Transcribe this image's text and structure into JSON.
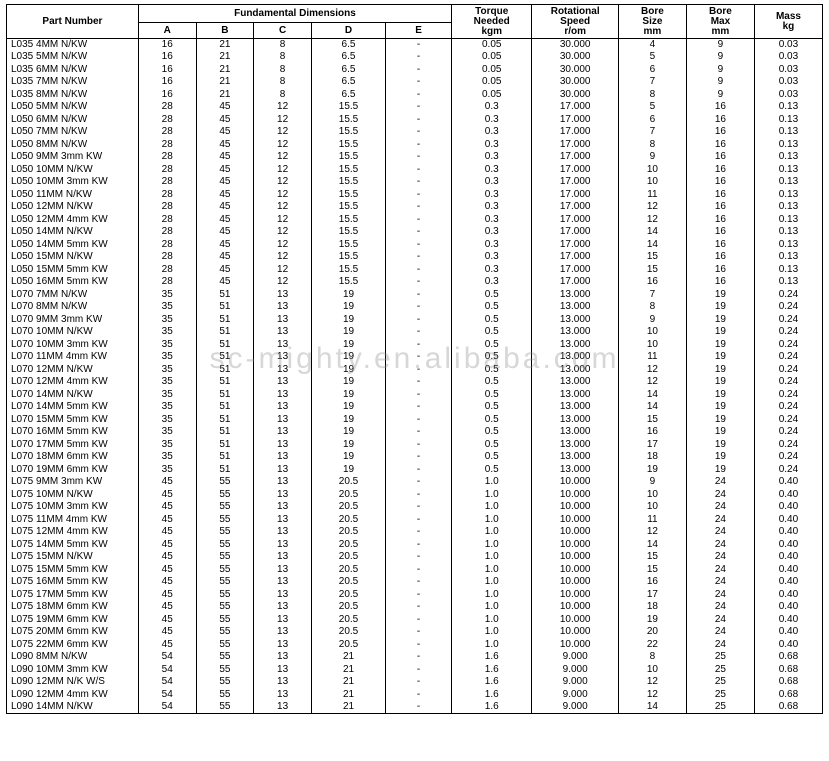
{
  "watermark": "sc-mighty.en.alibaba.com",
  "table": {
    "header": {
      "part_number": "Part Number",
      "fundamental": "Fundamental Dimensions",
      "cols_fund": [
        "A",
        "B",
        "C",
        "D",
        "E"
      ],
      "torque": "Torque\nNeeded\nkgm",
      "rot": "Rotational\nSpeed\nr/om",
      "bore_size": "Bore\nSize\nmm",
      "bore_max": "Bore\nMax\nmm",
      "mass": "Mass\nkg"
    },
    "rows": [
      {
        "pn": "L035 4MM N/KW",
        "a": 16,
        "b": 21,
        "c": 8,
        "d": "6.5",
        "e": "-",
        "tq": "0.05",
        "rs": "30.000",
        "bs": 4,
        "bm": 9,
        "mk": "0.03"
      },
      {
        "pn": "L035 5MM N/KW",
        "a": 16,
        "b": 21,
        "c": 8,
        "d": "6.5",
        "e": "-",
        "tq": "0.05",
        "rs": "30.000",
        "bs": 5,
        "bm": 9,
        "mk": "0.03"
      },
      {
        "pn": "L035 6MM N/KW",
        "a": 16,
        "b": 21,
        "c": 8,
        "d": "6.5",
        "e": "-",
        "tq": "0.05",
        "rs": "30.000",
        "bs": 6,
        "bm": 9,
        "mk": "0.03"
      },
      {
        "pn": "L035 7MM N/KW",
        "a": 16,
        "b": 21,
        "c": 8,
        "d": "6.5",
        "e": "-",
        "tq": "0.05",
        "rs": "30.000",
        "bs": 7,
        "bm": 9,
        "mk": "0.03"
      },
      {
        "pn": "L035 8MM N/KW",
        "a": 16,
        "b": 21,
        "c": 8,
        "d": "6.5",
        "e": "-",
        "tq": "0.05",
        "rs": "30.000",
        "bs": 8,
        "bm": 9,
        "mk": "0.03"
      },
      {
        "pn": "L050 5MM N/KW",
        "a": 28,
        "b": 45,
        "c": 12,
        "d": "15.5",
        "e": "-",
        "tq": "0.3",
        "rs": "17.000",
        "bs": 5,
        "bm": 16,
        "mk": "0.13"
      },
      {
        "pn": "L050 6MM N/KW",
        "a": 28,
        "b": 45,
        "c": 12,
        "d": "15.5",
        "e": "-",
        "tq": "0.3",
        "rs": "17.000",
        "bs": 6,
        "bm": 16,
        "mk": "0.13"
      },
      {
        "pn": "L050 7MM N/KW",
        "a": 28,
        "b": 45,
        "c": 12,
        "d": "15.5",
        "e": "-",
        "tq": "0.3",
        "rs": "17.000",
        "bs": 7,
        "bm": 16,
        "mk": "0.13"
      },
      {
        "pn": "L050 8MM N/KW",
        "a": 28,
        "b": 45,
        "c": 12,
        "d": "15.5",
        "e": "-",
        "tq": "0.3",
        "rs": "17.000",
        "bs": 8,
        "bm": 16,
        "mk": "0.13"
      },
      {
        "pn": "L050 9MM 3mm KW",
        "a": 28,
        "b": 45,
        "c": 12,
        "d": "15.5",
        "e": "-",
        "tq": "0.3",
        "rs": "17.000",
        "bs": 9,
        "bm": 16,
        "mk": "0.13"
      },
      {
        "pn": "L050 10MM N/KW",
        "a": 28,
        "b": 45,
        "c": 12,
        "d": "15.5",
        "e": "-",
        "tq": "0.3",
        "rs": "17.000",
        "bs": 10,
        "bm": 16,
        "mk": "0.13"
      },
      {
        "pn": "L050 10MM 3mm KW",
        "a": 28,
        "b": 45,
        "c": 12,
        "d": "15.5",
        "e": "-",
        "tq": "0.3",
        "rs": "17.000",
        "bs": 10,
        "bm": 16,
        "mk": "0.13"
      },
      {
        "pn": "L050 11MM N/KW",
        "a": 28,
        "b": 45,
        "c": 12,
        "d": "15.5",
        "e": "-",
        "tq": "0.3",
        "rs": "17.000",
        "bs": 11,
        "bm": 16,
        "mk": "0.13"
      },
      {
        "pn": "L050 12MM N/KW",
        "a": 28,
        "b": 45,
        "c": 12,
        "d": "15.5",
        "e": "-",
        "tq": "0.3",
        "rs": "17.000",
        "bs": 12,
        "bm": 16,
        "mk": "0.13"
      },
      {
        "pn": "L050 12MM 4mm KW",
        "a": 28,
        "b": 45,
        "c": 12,
        "d": "15.5",
        "e": "-",
        "tq": "0.3",
        "rs": "17.000",
        "bs": 12,
        "bm": 16,
        "mk": "0.13"
      },
      {
        "pn": "L050 14MM N/KW",
        "a": 28,
        "b": 45,
        "c": 12,
        "d": "15.5",
        "e": "-",
        "tq": "0.3",
        "rs": "17.000",
        "bs": 14,
        "bm": 16,
        "mk": "0.13"
      },
      {
        "pn": "L050 14MM 5mm KW",
        "a": 28,
        "b": 45,
        "c": 12,
        "d": "15.5",
        "e": "-",
        "tq": "0.3",
        "rs": "17.000",
        "bs": 14,
        "bm": 16,
        "mk": "0.13"
      },
      {
        "pn": "L050 15MM N/KW",
        "a": 28,
        "b": 45,
        "c": 12,
        "d": "15.5",
        "e": "-",
        "tq": "0.3",
        "rs": "17.000",
        "bs": 15,
        "bm": 16,
        "mk": "0.13"
      },
      {
        "pn": "L050 15MM 5mm KW",
        "a": 28,
        "b": 45,
        "c": 12,
        "d": "15.5",
        "e": "-",
        "tq": "0.3",
        "rs": "17.000",
        "bs": 15,
        "bm": 16,
        "mk": "0.13"
      },
      {
        "pn": "L050 16MM 5mm KW",
        "a": 28,
        "b": 45,
        "c": 12,
        "d": "15.5",
        "e": "-",
        "tq": "0.3",
        "rs": "17.000",
        "bs": 16,
        "bm": 16,
        "mk": "0.13"
      },
      {
        "pn": "L070 7MM N/KW",
        "a": 35,
        "b": 51,
        "c": 13,
        "d": "19",
        "e": "-",
        "tq": "0.5",
        "rs": "13.000",
        "bs": 7,
        "bm": 19,
        "mk": "0.24"
      },
      {
        "pn": "L070 8MM N/KW",
        "a": 35,
        "b": 51,
        "c": 13,
        "d": "19",
        "e": "-",
        "tq": "0.5",
        "rs": "13.000",
        "bs": 8,
        "bm": 19,
        "mk": "0.24"
      },
      {
        "pn": "L070 9MM 3mm KW",
        "a": 35,
        "b": 51,
        "c": 13,
        "d": "19",
        "e": "-",
        "tq": "0.5",
        "rs": "13.000",
        "bs": 9,
        "bm": 19,
        "mk": "0.24"
      },
      {
        "pn": "L070 10MM N/KW",
        "a": 35,
        "b": 51,
        "c": 13,
        "d": "19",
        "e": "-",
        "tq": "0.5",
        "rs": "13.000",
        "bs": 10,
        "bm": 19,
        "mk": "0.24"
      },
      {
        "pn": "L070 10MM 3mm KW",
        "a": 35,
        "b": 51,
        "c": 13,
        "d": "19",
        "e": "-",
        "tq": "0.5",
        "rs": "13.000",
        "bs": 10,
        "bm": 19,
        "mk": "0.24"
      },
      {
        "pn": "L070 11MM 4mm KW",
        "a": 35,
        "b": 51,
        "c": 13,
        "d": "19",
        "e": "-",
        "tq": "0.5",
        "rs": "13.000",
        "bs": 11,
        "bm": 19,
        "mk": "0.24"
      },
      {
        "pn": "L070 12MM N/KW",
        "a": 35,
        "b": 51,
        "c": 13,
        "d": "19",
        "e": "-",
        "tq": "0.5",
        "rs": "13.000",
        "bs": 12,
        "bm": 19,
        "mk": "0.24"
      },
      {
        "pn": "L070 12MM 4mm KW",
        "a": 35,
        "b": 51,
        "c": 13,
        "d": "19",
        "e": "-",
        "tq": "0.5",
        "rs": "13.000",
        "bs": 12,
        "bm": 19,
        "mk": "0.24"
      },
      {
        "pn": "L070 14MM N/KW",
        "a": 35,
        "b": 51,
        "c": 13,
        "d": "19",
        "e": "-",
        "tq": "0.5",
        "rs": "13.000",
        "bs": 14,
        "bm": 19,
        "mk": "0.24"
      },
      {
        "pn": "L070 14MM 5mm KW",
        "a": 35,
        "b": 51,
        "c": 13,
        "d": "19",
        "e": "-",
        "tq": "0.5",
        "rs": "13.000",
        "bs": 14,
        "bm": 19,
        "mk": "0.24"
      },
      {
        "pn": "L070 15MM 5mm KW",
        "a": 35,
        "b": 51,
        "c": 13,
        "d": "19",
        "e": "-",
        "tq": "0.5",
        "rs": "13.000",
        "bs": 15,
        "bm": 19,
        "mk": "0.24"
      },
      {
        "pn": "L070 16MM 5mm KW",
        "a": 35,
        "b": 51,
        "c": 13,
        "d": "19",
        "e": "-",
        "tq": "0.5",
        "rs": "13.000",
        "bs": 16,
        "bm": 19,
        "mk": "0.24"
      },
      {
        "pn": "L070 17MM 5mm KW",
        "a": 35,
        "b": 51,
        "c": 13,
        "d": "19",
        "e": "-",
        "tq": "0.5",
        "rs": "13.000",
        "bs": 17,
        "bm": 19,
        "mk": "0.24"
      },
      {
        "pn": "L070 18MM 6mm KW",
        "a": 35,
        "b": 51,
        "c": 13,
        "d": "19",
        "e": "-",
        "tq": "0.5",
        "rs": "13.000",
        "bs": 18,
        "bm": 19,
        "mk": "0.24"
      },
      {
        "pn": "L070 19MM 6mm KW",
        "a": 35,
        "b": 51,
        "c": 13,
        "d": "19",
        "e": "-",
        "tq": "0.5",
        "rs": "13.000",
        "bs": 19,
        "bm": 19,
        "mk": "0.24"
      },
      {
        "pn": "L075 9MM 3mm KW",
        "a": 45,
        "b": 55,
        "c": 13,
        "d": "20.5",
        "e": "-",
        "tq": "1.0",
        "rs": "10.000",
        "bs": 9,
        "bm": 24,
        "mk": "0.40"
      },
      {
        "pn": "L075 10MM N/KW",
        "a": 45,
        "b": 55,
        "c": 13,
        "d": "20.5",
        "e": "-",
        "tq": "1.0",
        "rs": "10.000",
        "bs": 10,
        "bm": 24,
        "mk": "0.40"
      },
      {
        "pn": "L075 10MM 3mm KW",
        "a": 45,
        "b": 55,
        "c": 13,
        "d": "20.5",
        "e": "-",
        "tq": "1.0",
        "rs": "10.000",
        "bs": 10,
        "bm": 24,
        "mk": "0.40"
      },
      {
        "pn": "L075 11MM 4mm KW",
        "a": 45,
        "b": 55,
        "c": 13,
        "d": "20.5",
        "e": "-",
        "tq": "1.0",
        "rs": "10.000",
        "bs": 11,
        "bm": 24,
        "mk": "0.40"
      },
      {
        "pn": "L075 12MM 4mm KW",
        "a": 45,
        "b": 55,
        "c": 13,
        "d": "20.5",
        "e": "-",
        "tq": "1.0",
        "rs": "10.000",
        "bs": 12,
        "bm": 24,
        "mk": "0.40"
      },
      {
        "pn": "L075 14MM 5mm KW",
        "a": 45,
        "b": 55,
        "c": 13,
        "d": "20.5",
        "e": "-",
        "tq": "1.0",
        "rs": "10.000",
        "bs": 14,
        "bm": 24,
        "mk": "0.40"
      },
      {
        "pn": "L075 15MM N/KW",
        "a": 45,
        "b": 55,
        "c": 13,
        "d": "20.5",
        "e": "-",
        "tq": "1.0",
        "rs": "10.000",
        "bs": 15,
        "bm": 24,
        "mk": "0.40"
      },
      {
        "pn": "L075 15MM 5mm KW",
        "a": 45,
        "b": 55,
        "c": 13,
        "d": "20.5",
        "e": "-",
        "tq": "1.0",
        "rs": "10.000",
        "bs": 15,
        "bm": 24,
        "mk": "0.40"
      },
      {
        "pn": "L075 16MM 5mm KW",
        "a": 45,
        "b": 55,
        "c": 13,
        "d": "20.5",
        "e": "-",
        "tq": "1.0",
        "rs": "10.000",
        "bs": 16,
        "bm": 24,
        "mk": "0.40"
      },
      {
        "pn": "L075 17MM 5mm KW",
        "a": 45,
        "b": 55,
        "c": 13,
        "d": "20.5",
        "e": "-",
        "tq": "1.0",
        "rs": "10.000",
        "bs": 17,
        "bm": 24,
        "mk": "0.40"
      },
      {
        "pn": "L075 18MM 6mm KW",
        "a": 45,
        "b": 55,
        "c": 13,
        "d": "20.5",
        "e": "-",
        "tq": "1.0",
        "rs": "10.000",
        "bs": 18,
        "bm": 24,
        "mk": "0.40"
      },
      {
        "pn": "L075 19MM 6mm KW",
        "a": 45,
        "b": 55,
        "c": 13,
        "d": "20.5",
        "e": "-",
        "tq": "1.0",
        "rs": "10.000",
        "bs": 19,
        "bm": 24,
        "mk": "0.40"
      },
      {
        "pn": "L075 20MM 6mm KW",
        "a": 45,
        "b": 55,
        "c": 13,
        "d": "20.5",
        "e": "-",
        "tq": "1.0",
        "rs": "10.000",
        "bs": 20,
        "bm": 24,
        "mk": "0.40"
      },
      {
        "pn": "L075 22MM 6mm KW",
        "a": 45,
        "b": 55,
        "c": 13,
        "d": "20.5",
        "e": "-",
        "tq": "1.0",
        "rs": "10.000",
        "bs": 22,
        "bm": 24,
        "mk": "0.40"
      },
      {
        "pn": "L090 8MM N/KW",
        "a": 54,
        "b": 55,
        "c": 13,
        "d": "21",
        "e": "-",
        "tq": "1.6",
        "rs": "9.000",
        "bs": 8,
        "bm": 25,
        "mk": "0.68"
      },
      {
        "pn": "L090 10MM 3mm KW",
        "a": 54,
        "b": 55,
        "c": 13,
        "d": "21",
        "e": "-",
        "tq": "1.6",
        "rs": "9.000",
        "bs": 10,
        "bm": 25,
        "mk": "0.68"
      },
      {
        "pn": "L090 12MM N/K W/S",
        "a": 54,
        "b": 55,
        "c": 13,
        "d": "21",
        "e": "-",
        "tq": "1.6",
        "rs": "9.000",
        "bs": 12,
        "bm": 25,
        "mk": "0.68"
      },
      {
        "pn": "L090 12MM 4mm KW",
        "a": 54,
        "b": 55,
        "c": 13,
        "d": "21",
        "e": "-",
        "tq": "1.6",
        "rs": "9.000",
        "bs": 12,
        "bm": 25,
        "mk": "0.68"
      },
      {
        "pn": "L090 14MM N/KW",
        "a": 54,
        "b": 55,
        "c": 13,
        "d": "21",
        "e": "-",
        "tq": "1.6",
        "rs": "9.000",
        "bs": 14,
        "bm": 25,
        "mk": "0.68"
      }
    ]
  }
}
